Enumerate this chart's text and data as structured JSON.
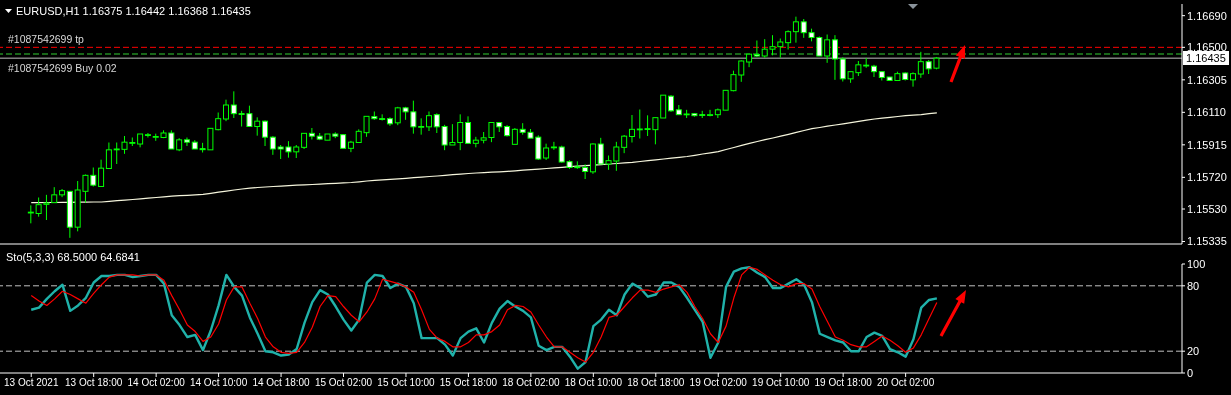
{
  "chart_data": [
    {
      "type": "candlestick",
      "title": "EURUSD,H1 1.16375 1.16442 1.16368 1.16435",
      "color": "#00ff00",
      "categories": [
        null,
        null,
        null,
        null,
        null,
        null,
        null,
        null,
        null,
        null,
        null,
        null,
        null,
        null,
        null,
        null,
        null,
        null,
        null,
        null,
        null,
        null,
        null,
        null,
        null,
        null,
        null,
        null,
        null,
        null,
        null,
        null,
        null,
        null,
        null,
        null,
        null,
        null,
        null,
        null,
        null,
        null,
        null,
        null,
        null,
        null,
        null,
        null,
        null,
        null,
        null,
        null,
        null,
        null,
        null,
        null,
        null,
        null,
        null,
        null,
        null,
        null,
        null,
        null,
        null,
        null,
        null,
        null,
        null,
        null,
        null,
        null,
        null,
        null,
        null,
        null,
        null,
        null,
        null,
        null,
        null,
        null,
        null,
        null,
        null,
        null,
        null,
        null,
        null,
        null,
        null,
        null,
        null,
        null,
        null,
        null,
        null,
        null,
        null,
        null,
        null,
        null,
        null,
        null,
        null,
        null,
        null,
        null,
        null,
        null,
        null,
        null,
        null,
        null,
        null,
        null,
        null
      ],
      "ohlc": [
        [
          1.15507,
          1.15552,
          1.15444,
          1.15511
        ],
        [
          1.15503,
          1.15599,
          1.15484,
          1.15556
        ],
        [
          1.15558,
          1.15615,
          1.15464,
          1.15566
        ],
        [
          1.15568,
          1.15661,
          1.15568,
          1.15615
        ],
        [
          1.15615,
          1.1565,
          1.15601,
          1.1564
        ],
        [
          1.15636,
          1.15636,
          1.15357,
          1.15421
        ],
        [
          1.15421,
          1.15698,
          1.15396,
          1.15644
        ],
        [
          1.15636,
          1.15737,
          1.15568,
          1.15732
        ],
        [
          1.15732,
          1.15779,
          1.15665,
          1.15673
        ],
        [
          1.15665,
          1.15826,
          1.15665,
          1.15775
        ],
        [
          1.15773,
          1.15929,
          1.15773,
          1.15885
        ],
        [
          1.15886,
          1.15929,
          1.158,
          1.1589
        ],
        [
          1.15888,
          1.15968,
          1.15861,
          1.15931
        ],
        [
          1.15924,
          1.15959,
          1.15908,
          1.15929
        ],
        [
          1.1592,
          1.1598,
          1.159,
          1.1598
        ],
        [
          1.15972,
          1.15986,
          1.15959,
          1.15976
        ],
        [
          1.15961,
          1.15982,
          1.15939,
          1.15965
        ],
        [
          1.15959,
          1.16002,
          1.15955,
          1.15986
        ],
        [
          1.15986,
          1.16002,
          1.1589,
          1.1589
        ],
        [
          1.15885,
          1.15955,
          1.15877,
          1.15945
        ],
        [
          1.15945,
          1.15959,
          1.15908,
          1.15931
        ],
        [
          1.15931,
          1.15943,
          1.1589,
          1.1589
        ],
        [
          1.15892,
          1.15927,
          1.15869,
          1.15886
        ],
        [
          1.15885,
          1.16014,
          1.15885,
          1.16014
        ],
        [
          1.16006,
          1.16109,
          1.16002,
          1.16072
        ],
        [
          1.1607,
          1.16186,
          1.16057,
          1.16154
        ],
        [
          1.16154,
          1.16236,
          1.16076,
          1.16102
        ],
        [
          1.16102,
          1.16119,
          1.16025,
          1.16098
        ],
        [
          1.16102,
          1.1615,
          1.16025,
          1.16025
        ],
        [
          1.16025,
          1.1608,
          1.1597,
          1.16057
        ],
        [
          1.16057,
          1.16061,
          1.15908,
          1.15961
        ],
        [
          1.15961,
          1.15967,
          1.15855,
          1.1589
        ],
        [
          1.15902,
          1.15914,
          1.1583,
          1.1589
        ],
        [
          1.15902,
          1.15937,
          1.15838,
          1.15873
        ],
        [
          1.15873,
          1.15914,
          1.15836,
          1.15902
        ],
        [
          1.159,
          1.15984,
          1.1589,
          1.15984
        ],
        [
          1.15984,
          1.16016,
          1.15947,
          1.15967
        ],
        [
          1.15967,
          1.15986,
          1.15943,
          1.15949
        ],
        [
          1.15943,
          1.1598,
          1.15943,
          1.1598
        ],
        [
          1.1598,
          1.1599,
          1.15955,
          1.15967
        ],
        [
          1.15976,
          1.1598,
          1.15894,
          1.15894
        ],
        [
          1.15894,
          1.15939,
          1.15871,
          1.15931
        ],
        [
          1.15929,
          1.16008,
          1.15929,
          1.15996
        ],
        [
          1.15988,
          1.16086,
          1.15963,
          1.16086
        ],
        [
          1.16084,
          1.16115,
          1.16065,
          1.16072
        ],
        [
          1.16072,
          1.16098,
          1.16061,
          1.1607
        ],
        [
          1.16072,
          1.1608,
          1.16029,
          1.16041
        ],
        [
          1.16047,
          1.16143,
          1.16033,
          1.16137
        ],
        [
          1.16137,
          1.16143,
          1.16065,
          1.16113
        ],
        [
          1.16113,
          1.1618,
          1.15982,
          1.16023
        ],
        [
          1.16023,
          1.16074,
          1.15976,
          1.16025
        ],
        [
          1.16023,
          1.16115,
          1.15998,
          1.1609
        ],
        [
          1.16096,
          1.16104,
          1.15986,
          1.16023
        ],
        [
          1.16025,
          1.16035,
          1.15883,
          1.15914
        ],
        [
          1.15914,
          1.16039,
          1.15914,
          1.15929
        ],
        [
          1.15929,
          1.16098,
          1.15883,
          1.16049
        ],
        [
          1.16049,
          1.16086,
          1.15924,
          1.15924
        ],
        [
          1.15924,
          1.15963,
          1.159,
          1.15943
        ],
        [
          1.15943,
          1.15992,
          1.15924,
          1.15957
        ],
        [
          1.15959,
          1.16049,
          1.15931,
          1.16049
        ],
        [
          1.16049,
          1.16049,
          1.15992,
          1.16023
        ],
        [
          1.16025,
          1.16033,
          1.15965,
          1.1597
        ],
        [
          1.15918,
          1.16016,
          1.15918,
          1.16008
        ],
        [
          1.16008,
          1.16045,
          1.15976,
          1.1599
        ],
        [
          1.1599,
          1.1601,
          1.15955,
          1.15955
        ],
        [
          1.15961,
          1.15972,
          1.15824,
          1.1583
        ],
        [
          1.15836,
          1.15922,
          1.15824,
          1.15896
        ],
        [
          1.15902,
          1.15933,
          1.15885,
          1.159
        ],
        [
          1.15902,
          1.1591,
          1.15808,
          1.15812
        ],
        [
          1.15814,
          1.15822,
          1.15771,
          1.15779
        ],
        [
          1.15783,
          1.15816,
          1.15771,
          1.15781
        ],
        [
          1.15779,
          1.15798,
          1.1571,
          1.15755
        ],
        [
          1.15753,
          1.15924,
          1.15741,
          1.1592
        ],
        [
          1.1592,
          1.15957,
          1.158,
          1.158
        ],
        [
          1.158,
          1.15851,
          1.15765,
          1.1582
        ],
        [
          1.15818,
          1.15933,
          1.15759,
          1.15902
        ],
        [
          1.159,
          1.15974,
          1.15865,
          1.15967
        ],
        [
          1.15965,
          1.16094,
          1.15929,
          1.16008
        ],
        [
          1.16006,
          1.16127,
          1.15953,
          1.1601
        ],
        [
          1.1601,
          1.16092,
          1.15968,
          1.16012
        ],
        [
          1.16006,
          1.16078,
          1.15918,
          1.16078
        ],
        [
          1.16076,
          1.16213,
          1.16076,
          1.16213
        ],
        [
          1.16207,
          1.16213,
          1.16113,
          1.16119
        ],
        [
          1.16125,
          1.16154,
          1.16096,
          1.16096
        ],
        [
          1.161,
          1.16125,
          1.16076,
          1.16098
        ],
        [
          1.16102,
          1.16105,
          1.16084,
          1.1609
        ],
        [
          1.16096,
          1.16119,
          1.16076,
          1.16094
        ],
        [
          1.16094,
          1.16125,
          1.16086,
          1.16096
        ],
        [
          1.16096,
          1.16133,
          1.16076,
          1.16125
        ],
        [
          1.16123,
          1.16242,
          1.16123,
          1.16242
        ],
        [
          1.1624,
          1.1636,
          1.16236,
          1.16336
        ],
        [
          1.16334,
          1.16422,
          1.16293,
          1.16418
        ],
        [
          1.16412,
          1.16459,
          1.16381,
          1.16459
        ],
        [
          1.16457,
          1.16541,
          1.16442,
          1.16448
        ],
        [
          1.16448,
          1.16549,
          1.16438,
          1.16489
        ],
        [
          1.16489,
          1.16573,
          1.16452,
          1.16504
        ],
        [
          1.16504,
          1.16553,
          1.16438,
          1.16532
        ],
        [
          1.16528,
          1.16602,
          1.16487,
          1.16594
        ],
        [
          1.16594,
          1.16684,
          1.16528,
          1.16653
        ],
        [
          1.16653,
          1.1667,
          1.16557,
          1.16588
        ],
        [
          1.16588,
          1.16612,
          1.16536,
          1.16559
        ],
        [
          1.16559,
          1.16565,
          1.16448,
          1.16448
        ],
        [
          1.16448,
          1.16577,
          1.16407,
          1.16545
        ],
        [
          1.16545,
          1.16573,
          1.16305,
          1.1643
        ],
        [
          1.1643,
          1.1644,
          1.16295,
          1.16311
        ],
        [
          1.16311,
          1.16354,
          1.16287,
          1.16354
        ],
        [
          1.16348,
          1.16418,
          1.16328,
          1.16395
        ],
        [
          1.16391,
          1.16436,
          1.16377,
          1.16393
        ],
        [
          1.16387,
          1.16395,
          1.16322,
          1.16354
        ],
        [
          1.16354,
          1.16354,
          1.16301,
          1.16319
        ],
        [
          1.16322,
          1.16322,
          1.16301,
          1.16301
        ],
        [
          1.16301,
          1.16354,
          1.16301,
          1.16342
        ],
        [
          1.16346,
          1.1635,
          1.16301,
          1.16307
        ],
        [
          1.16305,
          1.1635,
          1.16264,
          1.16342
        ],
        [
          1.1634,
          1.16473,
          1.16317,
          1.16414
        ],
        [
          1.16414,
          1.16424,
          1.1634,
          1.16371
        ],
        [
          1.16375,
          1.16442,
          1.16368,
          1.16435
        ]
      ],
      "series": [
        {
          "type": "line",
          "color": "#f5f5dc",
          "values": [
            1.15568,
            1.15568,
            1.15569,
            1.15569,
            1.1557,
            1.1557,
            1.15571,
            1.15571,
            1.15572,
            1.15572,
            1.15576,
            1.1558,
            1.15583,
            1.15587,
            1.15591,
            1.15595,
            1.15599,
            1.15603,
            1.15607,
            1.1561,
            1.15612,
            1.15615,
            1.15618,
            1.15624,
            1.15631,
            1.15637,
            1.15644,
            1.1565,
            1.15655,
            1.15659,
            1.15662,
            1.15665,
            1.15667,
            1.1567,
            1.15673,
            1.15675,
            1.15677,
            1.15679,
            1.15682,
            1.15684,
            1.15687,
            1.15689,
            1.15693,
            1.15698,
            1.15702,
            1.15705,
            1.15708,
            1.15711,
            1.15714,
            1.15718,
            1.15721,
            1.15725,
            1.15728,
            1.15732,
            1.15736,
            1.15739,
            1.15743,
            1.15746,
            1.15748,
            1.15751,
            1.15753,
            1.15756,
            1.15759,
            1.15763,
            1.15766,
            1.15769,
            1.15773,
            1.15777,
            1.1578,
            1.15784,
            1.15787,
            1.1579,
            1.15793,
            1.15796,
            1.158,
            1.15803,
            1.15807,
            1.1581,
            1.15815,
            1.1582,
            1.15825,
            1.1583,
            1.15835,
            1.1584,
            1.15845,
            1.15852,
            1.1586,
            1.15867,
            1.15874,
            1.15887,
            1.15899,
            1.15912,
            1.15924,
            1.15935,
            1.15946,
            1.15956,
            1.15967,
            1.15978,
            1.1599,
            1.16001,
            1.16012,
            1.16019,
            1.16027,
            1.16034,
            1.16041,
            1.16048,
            1.16056,
            1.16063,
            1.1607,
            1.16075,
            1.1608,
            1.16085,
            1.1609,
            1.16093,
            1.16096,
            1.16102,
            1.16107
          ]
        }
      ],
      "ylim": [
        1.1532,
        1.1676
      ],
      "yticks": [
        {
          "value": 1.1669,
          "label": "1.16690"
        },
        {
          "value": 1.165,
          "label": "1.16500"
        },
        1.16305,
        {
          "value": 1.1611,
          "label": "1.16110"
        },
        1.15915,
        {
          "value": 1.1572,
          "label": "1.15720"
        },
        {
          "value": 1.1553,
          "label": "1.15530"
        },
        1.15335
      ],
      "ref_lines": [
        {
          "axis": "y",
          "value": 1.165,
          "label": "#1087542699 tp",
          "color": "#ff0000",
          "line_style": "dashed"
        },
        {
          "axis": "y",
          "value": 1.1646,
          "label": "#1087542699 Buy 0.02",
          "color": "#32cd32",
          "line_style": "dashed"
        },
        {
          "axis": "y",
          "value": 1.16435,
          "label": "1.16435",
          "color": "#c0c0c0",
          "line_style": "solid"
        }
      ],
      "tick_labels": "y"
    },
    {
      "type": "line",
      "title": "Sto(5,3,3) 68.5000 64.6841",
      "categories": [
        "13 Oct 2021",
        null,
        null,
        null,
        null,
        null,
        null,
        null,
        "13 Oct 18:00",
        null,
        null,
        null,
        null,
        null,
        null,
        null,
        "14 Oct 02:00",
        null,
        null,
        null,
        null,
        null,
        null,
        null,
        "14 Oct 10:00",
        null,
        null,
        null,
        null,
        null,
        null,
        null,
        "14 Oct 18:00",
        null,
        null,
        null,
        null,
        null,
        null,
        null,
        "15 Oct 02:00",
        null,
        null,
        null,
        null,
        null,
        null,
        null,
        "15 Oct 10:00",
        null,
        null,
        null,
        null,
        null,
        null,
        null,
        "15 Oct 18:00",
        null,
        null,
        null,
        null,
        null,
        null,
        null,
        "18 Oct 02:00",
        null,
        null,
        null,
        null,
        null,
        null,
        null,
        "18 Oct 10:00",
        null,
        null,
        null,
        null,
        null,
        null,
        null,
        "18 Oct 18:00",
        null,
        null,
        null,
        null,
        null,
        null,
        null,
        "19 Oct 02:00",
        null,
        null,
        null,
        null,
        null,
        null,
        null,
        "19 Oct 10:00",
        null,
        null,
        null,
        null,
        null,
        null,
        null,
        "19 Oct 18:00",
        null,
        null,
        null,
        null,
        null,
        null,
        null,
        "20 Oct 02:00",
        null,
        null,
        null,
        null
      ],
      "series": [
        {
          "color": "#20b2aa",
          "values": [
            58,
            60,
            68,
            75,
            81,
            57,
            62,
            69,
            83,
            89,
            89,
            90,
            90,
            88,
            89,
            90,
            90,
            82,
            53,
            44,
            33,
            35,
            21,
            39,
            62,
            90,
            79,
            71,
            51,
            36,
            20,
            19,
            16,
            17,
            22,
            46,
            65,
            76,
            72,
            61,
            49,
            39,
            49,
            83,
            90,
            89,
            78,
            82,
            79,
            64,
            32,
            32,
            32,
            26,
            16,
            32,
            38,
            41,
            28,
            46,
            59,
            66,
            61,
            57,
            51,
            25,
            21,
            24,
            24,
            15,
            4,
            10,
            43,
            49,
            58,
            53,
            72,
            82,
            78,
            70,
            72,
            83,
            83,
            79,
            69,
            58,
            47,
            14,
            28,
            79,
            93,
            96,
            97,
            92,
            88,
            78,
            78,
            82,
            86,
            81,
            65,
            36,
            33,
            30,
            28,
            20,
            20,
            33,
            37,
            34,
            22,
            19,
            15,
            31,
            60,
            67,
            68.5
          ]
        },
        {
          "color": "#ff0000",
          "values": [
            71,
            66,
            62,
            68,
            75,
            72,
            68,
            64,
            73,
            81,
            88,
            90,
            90,
            90,
            89,
            90,
            90,
            85,
            71,
            58,
            44,
            38,
            29,
            33,
            45,
            67,
            79,
            79,
            64,
            50,
            33,
            24,
            19,
            18,
            19,
            28,
            42,
            61,
            71,
            70,
            61,
            53,
            47,
            56,
            68,
            86,
            84,
            82,
            79,
            74,
            58,
            40,
            32,
            29,
            24,
            24,
            28,
            35,
            35,
            38,
            44,
            58,
            62,
            61,
            56,
            44,
            33,
            24,
            24,
            19,
            14,
            10,
            19,
            33,
            51,
            53,
            61,
            69,
            76,
            76,
            74,
            77,
            79,
            81,
            74,
            61,
            50,
            36,
            28,
            43,
            69,
            90,
            97,
            95,
            90,
            85,
            81,
            79,
            82,
            82,
            77,
            61,
            47,
            33,
            30,
            26,
            24,
            24,
            29,
            34,
            30,
            25,
            19,
            23,
            35,
            50,
            64.6841
          ]
        }
      ],
      "ylim": [
        0,
        100
      ],
      "yticks": [
        0,
        20,
        80,
        100
      ],
      "ref_lines": [
        {
          "axis": "y",
          "value": 80,
          "color": "#c0c0c0",
          "line_style": "dashed"
        },
        {
          "axis": "y",
          "value": 20,
          "color": "#c0c0c0",
          "line_style": "dashed"
        }
      ]
    }
  ]
}
